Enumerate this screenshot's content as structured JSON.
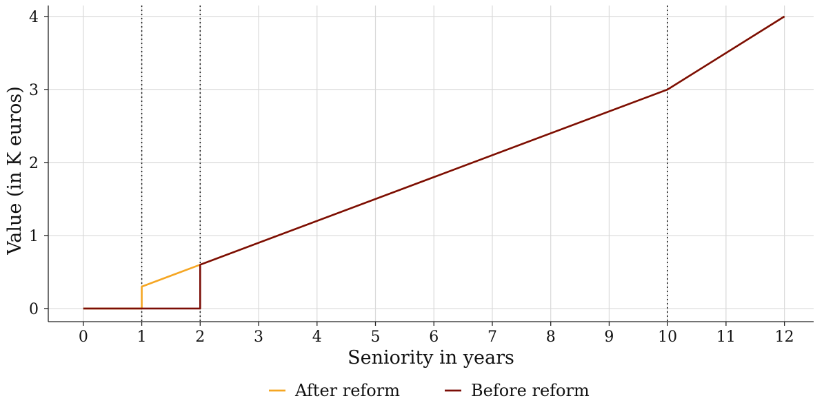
{
  "chart_data": {
    "type": "line",
    "xlabel": "Seniority in years",
    "ylabel": "Value (in K euros)",
    "xlim": [
      -0.6,
      12.5
    ],
    "ylim": [
      -0.18,
      4.15
    ],
    "x_ticks": [
      0,
      1,
      2,
      3,
      4,
      5,
      6,
      7,
      8,
      9,
      10,
      11,
      12
    ],
    "y_ticks": [
      0,
      1,
      2,
      3,
      4
    ],
    "grid": true,
    "legend_position": "bottom",
    "reference_lines_x": [
      1,
      2,
      10
    ],
    "series": [
      {
        "name": "After reform",
        "color": "#f5a623",
        "points": [
          [
            0,
            0
          ],
          [
            1,
            0
          ],
          [
            1,
            0.3
          ],
          [
            2,
            0.6
          ],
          [
            10,
            3.0
          ],
          [
            12,
            4.0
          ]
        ]
      },
      {
        "name": "Before reform",
        "color": "#7b0d06",
        "points": [
          [
            0,
            0
          ],
          [
            2,
            0
          ],
          [
            2,
            0.6
          ],
          [
            10,
            3.0
          ],
          [
            12,
            4.0
          ]
        ]
      }
    ]
  }
}
